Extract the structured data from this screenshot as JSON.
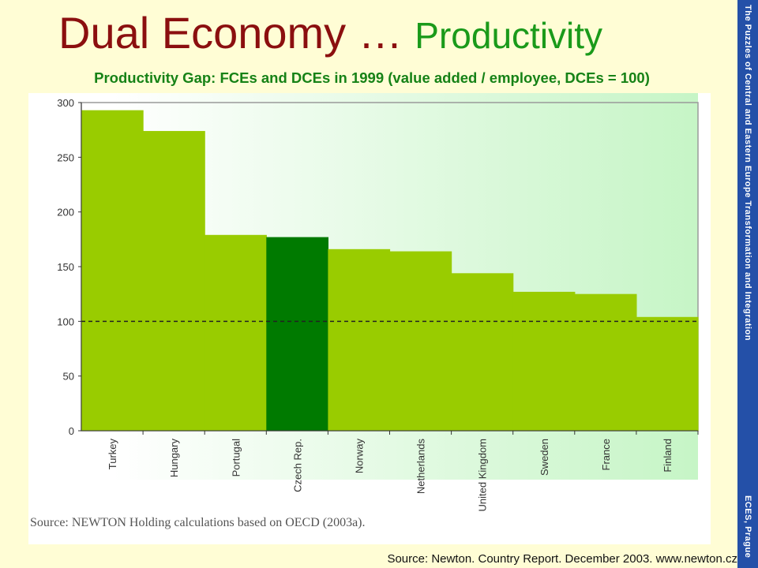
{
  "slide": {
    "title_part1": "Dual Economy …",
    "title_part2": "Productivity",
    "side_text_top": "The Puzzles of Central and Eastern Europe Transformation and Integration",
    "side_text_bottom": "ECES, Prague",
    "chart_source": "Source: NEWTON Holding calculations based on OECD (2003a).",
    "footer_source": "Source: Newton. Country Report. December 2003. www.newton.cz"
  },
  "colors": {
    "title_dark_red": "#8b0f0f",
    "title_green": "#1a9a1a",
    "subtitle_green": "#168216",
    "bar_light": "#99cc00",
    "bar_highlight": "#007a00",
    "side_band": "#2450a8",
    "slide_background": "#fffdd5"
  },
  "chart_data": {
    "type": "bar",
    "title": "Productivity Gap: FCEs and DCEs in 1999 (value added / employee, DCEs = 100)",
    "categories": [
      "Turkey",
      "Hungary",
      "Portugal",
      "Czech Rep.",
      "Norway",
      "Netherlands",
      "United Kingdom",
      "Sweden",
      "France",
      "Finland"
    ],
    "values": [
      293,
      274,
      179,
      177,
      166,
      164,
      144,
      127,
      125,
      104
    ],
    "highlight_category": "Czech Rep.",
    "reference_line": 100,
    "yticks": [
      0,
      50,
      100,
      150,
      200,
      250,
      300
    ],
    "ylim": [
      0,
      300
    ],
    "xlabel": "",
    "ylabel": "",
    "legend": "none",
    "grid": false
  }
}
